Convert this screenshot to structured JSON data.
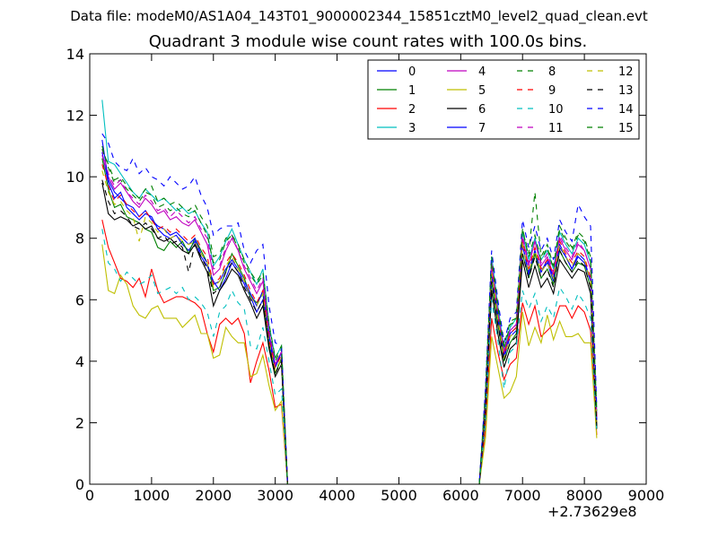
{
  "chart_data": {
    "type": "line",
    "suptitle": "Data file: modeM0/AS1A04_143T01_9000002344_15851cztM0_level2_quad_clean.evt",
    "title": "Quadrant 3 module wise count rates with 100.0s bins.",
    "xlabel": "",
    "ylabel": "",
    "x_offset_label": "+2.73629e8",
    "xlim": [
      0,
      9000
    ],
    "ylim": [
      0,
      14
    ],
    "xticks": [
      0,
      1000,
      2000,
      3000,
      4000,
      5000,
      6000,
      7000,
      8000,
      9000
    ],
    "yticks": [
      0,
      2,
      4,
      6,
      8,
      10,
      12,
      14
    ],
    "grid": false,
    "legend_position": "top-right",
    "legend_columns": 4,
    "x_segments": [
      {
        "start": 200,
        "end": 3100,
        "step": 100
      },
      {
        "start": 6400,
        "end": 8200,
        "step": 100
      }
    ],
    "gap_x": [
      3200,
      6300
    ],
    "series": [
      {
        "name": "0",
        "color": "#0000ff",
        "dash": "solid",
        "seg1": [
          10.8,
          9.8,
          9.3,
          9.5,
          9.0,
          8.8,
          8.6,
          8.8,
          8.7,
          8.3,
          8.1,
          8.0,
          8.1,
          7.8,
          7.6,
          7.9,
          7.4,
          7.1,
          6.6,
          6.3,
          6.7,
          7.2,
          6.9,
          6.5,
          6.1,
          5.6,
          6.0,
          4.6,
          3.8,
          4.3
        ],
        "seg2": [
          2.6,
          6.9,
          5.4,
          4.1,
          4.8,
          5.0,
          7.8,
          6.8,
          7.6,
          6.9,
          7.2,
          6.6,
          7.8,
          7.4,
          7.0,
          7.4,
          7.2,
          6.6,
          2.0
        ]
      },
      {
        "name": "1",
        "color": "#008000",
        "dash": "solid",
        "seg1": [
          10.6,
          9.6,
          9.0,
          9.1,
          8.7,
          8.6,
          8.5,
          8.3,
          8.2,
          7.7,
          7.6,
          7.9,
          7.7,
          7.9,
          7.5,
          8.0,
          7.6,
          7.2,
          6.3,
          6.4,
          6.9,
          7.5,
          7.1,
          6.7,
          6.1,
          5.9,
          6.2,
          4.5,
          3.6,
          4.1
        ],
        "seg2": [
          2.4,
          6.6,
          5.2,
          4.0,
          4.6,
          4.9,
          7.5,
          6.7,
          7.5,
          6.7,
          7.0,
          6.5,
          7.6,
          7.2,
          6.9,
          7.2,
          7.1,
          6.4,
          1.8
        ]
      },
      {
        "name": "2",
        "color": "#ff0000",
        "dash": "solid",
        "seg1": [
          8.6,
          7.7,
          7.2,
          6.7,
          6.6,
          6.4,
          6.7,
          6.1,
          7.0,
          6.3,
          5.9,
          6.0,
          6.1,
          6.1,
          6.0,
          5.9,
          5.7,
          4.9,
          4.3,
          5.2,
          5.4,
          5.2,
          5.4,
          4.9,
          3.3,
          4.0,
          4.6,
          3.7,
          2.5,
          2.6
        ],
        "seg2": [
          1.8,
          5.4,
          4.3,
          3.4,
          3.9,
          4.1,
          5.9,
          5.2,
          5.8,
          4.8,
          5.0,
          5.2,
          5.8,
          5.8,
          5.4,
          5.8,
          5.6,
          5.0,
          1.6
        ]
      },
      {
        "name": "3",
        "color": "#00bfbf",
        "dash": "solid",
        "seg1": [
          12.5,
          10.5,
          10.4,
          10.1,
          9.8,
          9.5,
          9.3,
          9.6,
          9.4,
          9.2,
          9.3,
          9.1,
          8.9,
          9.0,
          8.8,
          8.9,
          8.5,
          8.2,
          7.1,
          7.4,
          7.9,
          8.3,
          7.8,
          7.3,
          6.9,
          6.5,
          7.0,
          5.2,
          4.1,
          4.5
        ],
        "seg2": [
          3.0,
          7.4,
          5.8,
          4.4,
          5.1,
          5.4,
          8.2,
          7.3,
          8.0,
          7.3,
          7.6,
          7.0,
          8.2,
          7.8,
          7.5,
          8.0,
          7.8,
          7.2,
          2.3
        ]
      },
      {
        "name": "4",
        "color": "#bf00bf",
        "dash": "solid",
        "seg1": [
          10.7,
          10.0,
          9.6,
          9.8,
          9.5,
          9.2,
          9.0,
          9.3,
          9.1,
          8.8,
          8.9,
          8.6,
          8.7,
          8.5,
          8.4,
          8.6,
          8.2,
          7.8,
          6.8,
          7.0,
          7.6,
          8.0,
          7.6,
          7.0,
          6.6,
          6.2,
          6.6,
          4.9,
          3.9,
          4.3
        ],
        "seg2": [
          2.8,
          7.1,
          5.6,
          4.3,
          5.0,
          5.2,
          8.0,
          7.1,
          7.9,
          7.1,
          7.4,
          6.8,
          8.0,
          7.6,
          7.3,
          7.8,
          7.6,
          7.0,
          2.2
        ]
      },
      {
        "name": "5",
        "color": "#bfbf00",
        "dash": "solid",
        "seg1": [
          7.8,
          6.3,
          6.2,
          6.8,
          6.5,
          5.8,
          5.5,
          5.4,
          5.7,
          5.8,
          5.4,
          5.4,
          5.4,
          5.1,
          5.3,
          5.5,
          4.9,
          4.9,
          4.1,
          4.2,
          5.1,
          4.8,
          4.6,
          4.6,
          3.5,
          3.6,
          4.2,
          3.2,
          2.4,
          2.7
        ],
        "seg2": [
          1.5,
          4.8,
          3.8,
          2.8,
          3.0,
          3.5,
          5.6,
          4.5,
          5.1,
          4.6,
          5.5,
          4.7,
          5.3,
          4.8,
          4.8,
          4.9,
          4.6,
          4.6,
          1.5
        ]
      },
      {
        "name": "6",
        "color": "#000000",
        "dash": "solid",
        "seg1": [
          9.8,
          8.8,
          8.6,
          8.7,
          8.6,
          8.4,
          8.5,
          8.3,
          8.4,
          8.0,
          7.9,
          8.0,
          7.8,
          7.6,
          7.5,
          7.8,
          7.3,
          6.9,
          5.8,
          6.3,
          6.6,
          7.0,
          6.8,
          6.3,
          5.9,
          5.4,
          5.8,
          4.4,
          3.5,
          3.9
        ],
        "seg2": [
          2.3,
          6.3,
          4.9,
          3.8,
          4.4,
          4.6,
          7.3,
          6.4,
          7.1,
          6.4,
          6.7,
          6.2,
          7.3,
          7.0,
          6.7,
          7.0,
          6.9,
          6.2,
          1.8
        ]
      },
      {
        "name": "7",
        "color": "#0000ff",
        "dash": "solid",
        "seg1": [
          11.2,
          9.9,
          9.5,
          9.3,
          9.1,
          9.0,
          8.7,
          8.9,
          8.6,
          8.4,
          8.3,
          8.1,
          8.2,
          8.0,
          7.8,
          8.0,
          7.5,
          7.2,
          6.5,
          6.6,
          7.0,
          7.3,
          7.0,
          6.6,
          6.2,
          5.8,
          6.3,
          4.8,
          3.8,
          4.3
        ],
        "seg2": [
          2.7,
          6.8,
          5.5,
          4.2,
          4.9,
          5.1,
          7.8,
          6.9,
          7.6,
          6.9,
          7.3,
          6.7,
          7.7,
          7.4,
          7.0,
          7.5,
          7.3,
          6.6,
          2.1
        ]
      },
      {
        "name": "8",
        "color": "#008000",
        "dash": "dashed",
        "seg1": [
          11.0,
          10.3,
          9.8,
          9.9,
          9.6,
          9.4,
          9.2,
          9.5,
          9.4,
          9.0,
          9.1,
          8.9,
          9.0,
          8.8,
          8.7,
          8.9,
          8.5,
          8.1,
          7.2,
          7.3,
          7.9,
          8.1,
          7.7,
          7.2,
          6.8,
          6.5,
          6.8,
          5.1,
          4.0,
          4.4
        ],
        "seg2": [
          2.9,
          7.3,
          5.7,
          4.4,
          5.2,
          5.3,
          8.3,
          7.4,
          8.1,
          7.3,
          7.7,
          7.0,
          8.3,
          7.9,
          7.6,
          8.1,
          7.9,
          7.3,
          2.4
        ]
      },
      {
        "name": "9",
        "color": "#ff0000",
        "dash": "dashed",
        "seg1": [
          10.4,
          9.7,
          9.2,
          9.4,
          9.1,
          8.9,
          8.7,
          8.9,
          8.6,
          8.3,
          8.4,
          8.2,
          8.3,
          8.1,
          7.9,
          8.1,
          7.7,
          7.4,
          6.5,
          6.7,
          7.2,
          7.5,
          7.2,
          6.8,
          6.3,
          5.9,
          6.3,
          4.7,
          3.8,
          4.2
        ],
        "seg2": [
          2.6,
          7.0,
          5.5,
          4.2,
          4.9,
          5.1,
          7.9,
          7.0,
          7.7,
          7.0,
          7.3,
          6.8,
          7.9,
          7.5,
          7.2,
          7.6,
          7.4,
          6.7,
          2.1
        ]
      },
      {
        "name": "10",
        "color": "#00bfbf",
        "dash": "dashed",
        "seg1": [
          8.3,
          7.2,
          7.0,
          6.6,
          6.9,
          6.7,
          6.5,
          6.6,
          6.8,
          6.2,
          6.3,
          6.4,
          6.2,
          6.4,
          6.0,
          6.1,
          5.9,
          5.6,
          4.8,
          5.6,
          5.8,
          6.3,
          5.9,
          5.7,
          4.5,
          4.4,
          5.1,
          4.0,
          2.9,
          3.1
        ],
        "seg2": [
          2.0,
          6.0,
          4.7,
          3.1,
          4.3,
          4.5,
          6.3,
          5.7,
          6.2,
          5.3,
          5.8,
          5.4,
          6.4,
          6.1,
          5.7,
          6.2,
          5.9,
          5.4,
          1.7
        ]
      },
      {
        "name": "11",
        "color": "#bf00bf",
        "dash": "dashed",
        "seg1": [
          10.9,
          10.1,
          9.7,
          9.9,
          9.5,
          9.3,
          9.1,
          9.4,
          9.2,
          8.9,
          9.0,
          8.7,
          8.9,
          8.7,
          8.5,
          8.7,
          8.3,
          8.0,
          7.0,
          7.1,
          7.7,
          8.1,
          7.6,
          7.1,
          6.7,
          6.3,
          6.7,
          5.0,
          3.9,
          4.3
        ],
        "seg2": [
          2.8,
          7.2,
          5.6,
          4.3,
          5.0,
          5.2,
          8.1,
          7.2,
          7.9,
          7.2,
          7.5,
          6.9,
          8.1,
          7.7,
          7.4,
          7.9,
          7.6,
          7.0,
          2.2
        ]
      },
      {
        "name": "12",
        "color": "#bfbf00",
        "dash": "dashed",
        "seg1": [
          10.2,
          9.5,
          9.1,
          9.2,
          8.9,
          8.7,
          7.9,
          8.7,
          8.5,
          8.2,
          8.3,
          8.0,
          8.1,
          7.9,
          7.8,
          7.9,
          7.5,
          7.2,
          6.4,
          6.6,
          7.1,
          7.4,
          7.0,
          6.6,
          6.1,
          5.8,
          6.2,
          4.6,
          3.7,
          4.1
        ],
        "seg2": [
          2.5,
          6.9,
          5.4,
          4.1,
          4.8,
          5.0,
          7.8,
          6.9,
          7.6,
          6.9,
          7.2,
          6.7,
          7.8,
          7.4,
          7.1,
          7.5,
          7.3,
          6.6,
          2.0
        ]
      },
      {
        "name": "13",
        "color": "#000000",
        "dash": "dashed",
        "seg1": [
          9.9,
          9.2,
          8.8,
          8.9,
          8.7,
          8.4,
          8.3,
          8.5,
          8.3,
          8.0,
          8.1,
          7.8,
          7.9,
          7.7,
          6.9,
          7.8,
          7.4,
          7.0,
          6.2,
          6.4,
          6.9,
          7.2,
          6.9,
          6.4,
          6.0,
          5.6,
          6.0,
          4.5,
          3.6,
          4.0
        ],
        "seg2": [
          2.4,
          6.6,
          5.2,
          4.0,
          4.6,
          4.8,
          7.5,
          6.7,
          7.4,
          6.7,
          7.0,
          6.4,
          7.6,
          7.2,
          6.9,
          7.3,
          7.1,
          6.4,
          1.9
        ]
      },
      {
        "name": "14",
        "color": "#0000ff",
        "dash": "dashed",
        "seg1": [
          11.4,
          11.1,
          10.5,
          10.3,
          10.2,
          10.6,
          10.1,
          10.3,
          10.0,
          9.9,
          9.7,
          10.0,
          9.8,
          9.6,
          9.7,
          10.0,
          9.4,
          9.0,
          8.1,
          8.3,
          8.4,
          8.4,
          8.5,
          7.6,
          7.2,
          7.6,
          7.8,
          5.8,
          4.6,
          4.5
        ],
        "seg2": [
          3.1,
          7.6,
          6.0,
          4.6,
          5.4,
          5.6,
          8.6,
          7.7,
          8.4,
          7.6,
          8.0,
          7.3,
          8.6,
          8.2,
          7.9,
          9.1,
          8.7,
          8.4,
          2.5
        ]
      },
      {
        "name": "15",
        "color": "#008000",
        "dash": "dashed",
        "seg1": [
          10.9,
          10.4,
          9.9,
          10.0,
          9.7,
          9.5,
          9.3,
          9.6,
          9.7,
          9.2,
          9.3,
          9.1,
          9.2,
          9.0,
          8.9,
          9.1,
          8.7,
          8.4,
          7.4,
          7.5,
          8.0,
          8.1,
          7.8,
          7.3,
          6.9,
          6.6,
          6.9,
          5.2,
          4.1,
          4.5
        ],
        "seg2": [
          3.0,
          7.4,
          5.8,
          4.5,
          5.3,
          5.4,
          8.3,
          7.5,
          9.5,
          7.4,
          7.8,
          7.1,
          8.4,
          8.0,
          7.7,
          8.2,
          8.0,
          7.4,
          2.4
        ]
      }
    ]
  }
}
